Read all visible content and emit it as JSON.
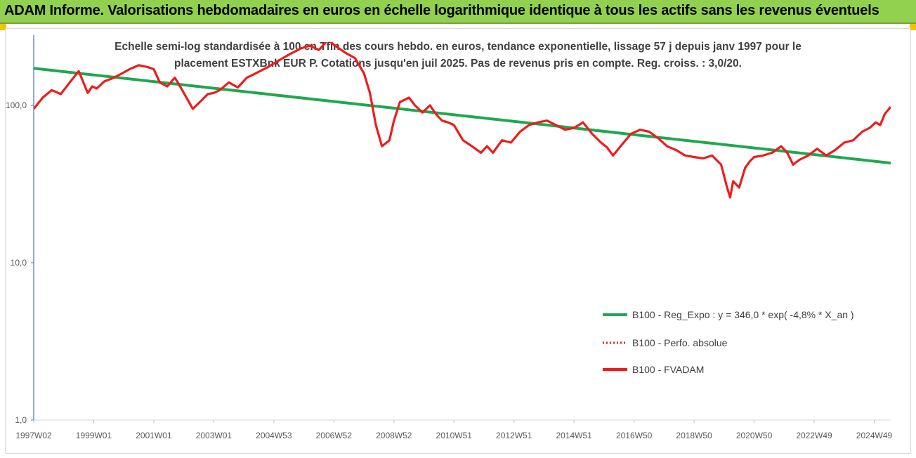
{
  "banner": {
    "title": "ADAM Informe. Valorisations hebdomadaires en euros en échelle logarithmique identique à tous les actifs sans les revenus éventuels"
  },
  "colors": {
    "banner_bg": "#92d050",
    "corner": "#f2c200",
    "trend": "#1fa84f",
    "series": "#ee1c1c"
  },
  "chart_data": {
    "type": "line",
    "title_line1": "Echelle semi-log standardisée à 100 en Tfin des cours hebdo. en euros, tendance exponentielle, lissage 57 j depuis janv 1997 pour le",
    "title_line2": "placement ESTXBnk EUR P. Cotations jusqu'en juil 2025. Pas de revenus pris en compte. Reg. croiss. : 3,0/20.",
    "y_scale": "log",
    "ylim": [
      1,
      200
    ],
    "y_ticks": [
      "1,0",
      "10,0",
      "100,0"
    ],
    "y_tick_values": [
      1,
      10,
      100
    ],
    "x_range": [
      1997.0,
      2025.55
    ],
    "x_ticks": [
      "1997W02",
      "1999W01",
      "2001W01",
      "2003W01",
      "2004W53",
      "2006W52",
      "2008W52",
      "2010W51",
      "2012W51",
      "2014W51",
      "2016W50",
      "2018W50",
      "2020W50",
      "2022W49",
      "2024W49"
    ],
    "x_tick_values": [
      1997.0,
      1999.0,
      2001.0,
      2003.0,
      2005.0,
      2007.0,
      2009.0,
      2011.0,
      2013.0,
      2015.0,
      2017.0,
      2019.0,
      2021.0,
      2023.0,
      2025.0
    ],
    "legend_position": "right",
    "grid": false,
    "series": [
      {
        "name": "B100 - Reg_Expo : y = 346,0 * exp( -4,8% *  X_an )",
        "style": "solid-green",
        "x": [
          1997.0,
          2025.55
        ],
        "y": [
          172,
          43
        ]
      },
      {
        "name": "B100 - Perfo. absolue",
        "style": "dotted-red",
        "x": [],
        "y": []
      },
      {
        "name": "B100 - FVADAM",
        "style": "solid-red",
        "x": [
          1997.0,
          1997.3,
          1997.6,
          1997.9,
          1998.2,
          1998.5,
          1998.8,
          1998.95,
          1999.1,
          1999.35,
          1999.6,
          1999.9,
          2000.2,
          2000.5,
          2000.8,
          2001.0,
          2001.2,
          2001.45,
          2001.7,
          2001.8,
          2002.0,
          2002.3,
          2002.6,
          2002.8,
          2003.0,
          2003.2,
          2003.5,
          2003.8,
          2004.1,
          2004.4,
          2004.8,
          2005.1,
          2005.5,
          2005.9,
          2006.2,
          2006.5,
          2006.8,
          2007.1,
          2007.4,
          2007.7,
          2008.0,
          2008.2,
          2008.4,
          2008.6,
          2008.85,
          2009.0,
          2009.2,
          2009.5,
          2009.7,
          2009.95,
          2010.2,
          2010.4,
          2010.6,
          2010.8,
          2011.0,
          2011.3,
          2011.6,
          2011.9,
          2012.1,
          2012.3,
          2012.6,
          2012.9,
          2013.2,
          2013.5,
          2013.8,
          2014.1,
          2014.4,
          2014.7,
          2015.0,
          2015.3,
          2015.6,
          2015.9,
          2016.1,
          2016.3,
          2016.55,
          2016.9,
          2017.2,
          2017.5,
          2017.8,
          2018.1,
          2018.4,
          2018.7,
          2019.0,
          2019.3,
          2019.6,
          2019.9,
          2020.1,
          2020.2,
          2020.3,
          2020.5,
          2020.7,
          2020.85,
          2021.0,
          2021.3,
          2021.6,
          2021.9,
          2022.1,
          2022.3,
          2022.5,
          2022.8,
          2023.1,
          2023.4,
          2023.7,
          2024.0,
          2024.3,
          2024.6,
          2024.85,
          2025.05,
          2025.2,
          2025.35,
          2025.55
        ],
        "y": [
          95,
          112,
          125,
          118,
          140,
          165,
          120,
          132,
          128,
          142,
          148,
          158,
          170,
          180,
          175,
          170,
          140,
          132,
          150,
          140,
          120,
          95,
          108,
          118,
          120,
          125,
          140,
          130,
          150,
          160,
          175,
          190,
          210,
          230,
          240,
          225,
          260,
          235,
          215,
          200,
          160,
          120,
          75,
          55,
          60,
          80,
          105,
          112,
          100,
          90,
          100,
          88,
          80,
          78,
          75,
          60,
          55,
          50,
          55,
          50,
          60,
          58,
          68,
          75,
          78,
          80,
          75,
          70,
          72,
          78,
          66,
          58,
          54,
          48,
          55,
          66,
          70,
          68,
          62,
          55,
          52,
          48,
          47,
          46,
          48,
          42,
          30,
          26,
          33,
          30,
          40,
          44,
          47,
          48,
          50,
          55,
          50,
          42,
          45,
          48,
          53,
          48,
          52,
          58,
          60,
          68,
          72,
          78,
          75,
          88,
          98
        ]
      }
    ]
  }
}
